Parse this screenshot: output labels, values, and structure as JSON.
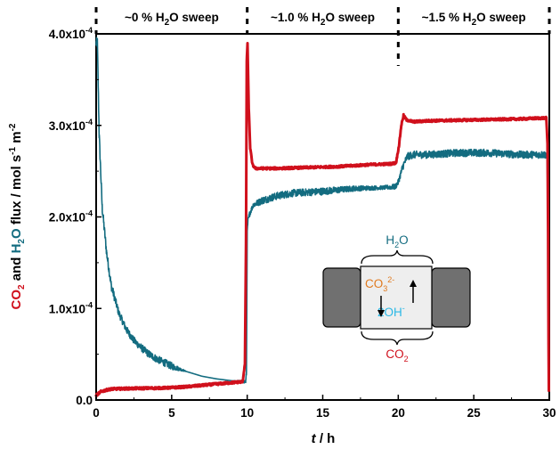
{
  "chart_data": {
    "type": "line",
    "xlabel": "h",
    "xlabel_var": "t",
    "xlim": [
      0,
      30
    ],
    "ylim": [
      0,
      0.0004
    ],
    "x_ticks": [
      0,
      5,
      10,
      15,
      20,
      25,
      30
    ],
    "y_ticks": [
      {
        "value": 0.0,
        "label": "0.0",
        "exp": ""
      },
      {
        "value": 0.0001,
        "label": "1.0x10",
        "exp": "-4"
      },
      {
        "value": 0.0002,
        "label": "2.0x10",
        "exp": "-4"
      },
      {
        "value": 0.0003,
        "label": "3.0x10",
        "exp": "-4"
      },
      {
        "value": 0.0004,
        "label": "4.0x10",
        "exp": "-4"
      }
    ],
    "ylabel": {
      "co2": "CO",
      "co2_sub": "2",
      "and": " and ",
      "h2o": "H",
      "h2o_sub": "2",
      "h2o_tail": "O",
      "rest": " flux / mol s",
      "exp1": "-1",
      "rest2": " m",
      "exp2": "-2"
    },
    "phases": [
      {
        "label": "~0 % H",
        "sub": "2",
        "tail": "O sweep",
        "x_start": 0,
        "x_end": 10
      },
      {
        "label": "~1.0 % H",
        "sub": "2",
        "tail": "O sweep",
        "x_start": 10,
        "x_end": 20
      },
      {
        "label": "~1.5 % H",
        "sub": "2",
        "tail": "O sweep",
        "x_start": 20,
        "x_end": 30
      }
    ],
    "series": [
      {
        "key": "co2",
        "color": "#d0101c",
        "x": [
          0,
          0.3,
          0.7,
          1,
          2,
          3,
          4,
          5,
          6,
          7,
          8,
          9,
          9.7,
          9.85,
          9.92,
          9.97,
          10.02,
          10.1,
          10.2,
          10.35,
          10.55,
          11,
          12,
          14,
          16,
          18,
          19.5,
          19.85,
          20.05,
          20.2,
          20.35,
          20.55,
          21,
          22,
          25,
          28,
          29.5,
          29.8,
          29.88,
          29.92,
          29.95,
          29.97
        ],
        "y": [
          5e-06,
          9e-06,
          1.1e-05,
          1.2e-05,
          1.25e-05,
          1.28e-05,
          1.3e-05,
          1.35e-05,
          1.45e-05,
          1.6e-05,
          1.75e-05,
          1.9e-05,
          2e-05,
          4e-05,
          0.00017,
          0.00037,
          0.00039,
          0.00032,
          0.000275,
          0.000257,
          0.000253,
          0.000253,
          0.000253,
          0.000254,
          0.000255,
          0.000257,
          0.000258,
          0.000259,
          0.000278,
          0.0003,
          0.000311,
          0.000306,
          0.000304,
          0.000305,
          0.000306,
          0.000307,
          0.000308,
          0.000308,
          0.00028,
          0.00018,
          6e-05,
          1e-05
        ]
      },
      {
        "key": "h2o",
        "color": "#136c80",
        "noise": [
          6e-06,
          6e-06,
          6e-06,
          6e-06,
          5e-06,
          5e-06,
          4e-06,
          4e-06,
          4e-06,
          4e-06,
          4e-06,
          4e-06,
          4e-06,
          0,
          0,
          0,
          0,
          2e-06,
          3e-06,
          3e-06,
          3e-06,
          3e-06,
          3e-06,
          4e-06,
          4e-06,
          4e-06,
          4e-06,
          3e-06,
          2e-06,
          3e-06,
          3e-06,
          4e-06,
          4e-06,
          4e-06,
          4e-06,
          4e-06,
          4e-06,
          4e-06,
          4e-06,
          4e-06,
          0,
          0,
          0
        ],
        "x": [
          0,
          0.08,
          0.2,
          0.4,
          0.7,
          1,
          1.5,
          2,
          2.5,
          3,
          3.5,
          4,
          5,
          6,
          7,
          8,
          9,
          9.9,
          9.95,
          10.0,
          10.05,
          10.15,
          10.4,
          11,
          12,
          13,
          15,
          17,
          19,
          19.8,
          20.0,
          20.3,
          20.6,
          21,
          22,
          24,
          26,
          28,
          29.5,
          29.85,
          29.9,
          29.93,
          29.96
        ],
        "y": [
          0.00039,
          0.00039,
          0.00029,
          0.00021,
          0.00016,
          0.000125,
          9.5e-05,
          7.7e-05,
          6.5e-05,
          5.7e-05,
          5e-05,
          4.5e-05,
          3.7e-05,
          3.1e-05,
          2.6e-05,
          2.3e-05,
          2.1e-05,
          2e-05,
          3e-05,
          0.000183,
          0.000196,
          0.000203,
          0.000213,
          0.000218,
          0.000223,
          0.000226,
          0.000228,
          0.000231,
          0.000232,
          0.000233,
          0.000238,
          0.000255,
          0.000266,
          0.000268,
          0.000268,
          0.00027,
          0.00027,
          0.000268,
          0.000268,
          0.000268,
          0.0002,
          8e-05,
          1e-05
        ]
      }
    ],
    "inset": {
      "top_label": "H",
      "top_sub": "2",
      "top_tail": "O",
      "bottom_label": "CO",
      "bottom_sub": "2",
      "carbonate": "CO",
      "carbonate_sub": "3",
      "carbonate_sup": "2-",
      "hydroxide": "2OH",
      "hydroxide_sup": "-",
      "carbonate_color": "#e07a1f",
      "hydroxide_color": "#29b8e6",
      "top_color": "#136c80",
      "bottom_color": "#d0101c"
    }
  }
}
